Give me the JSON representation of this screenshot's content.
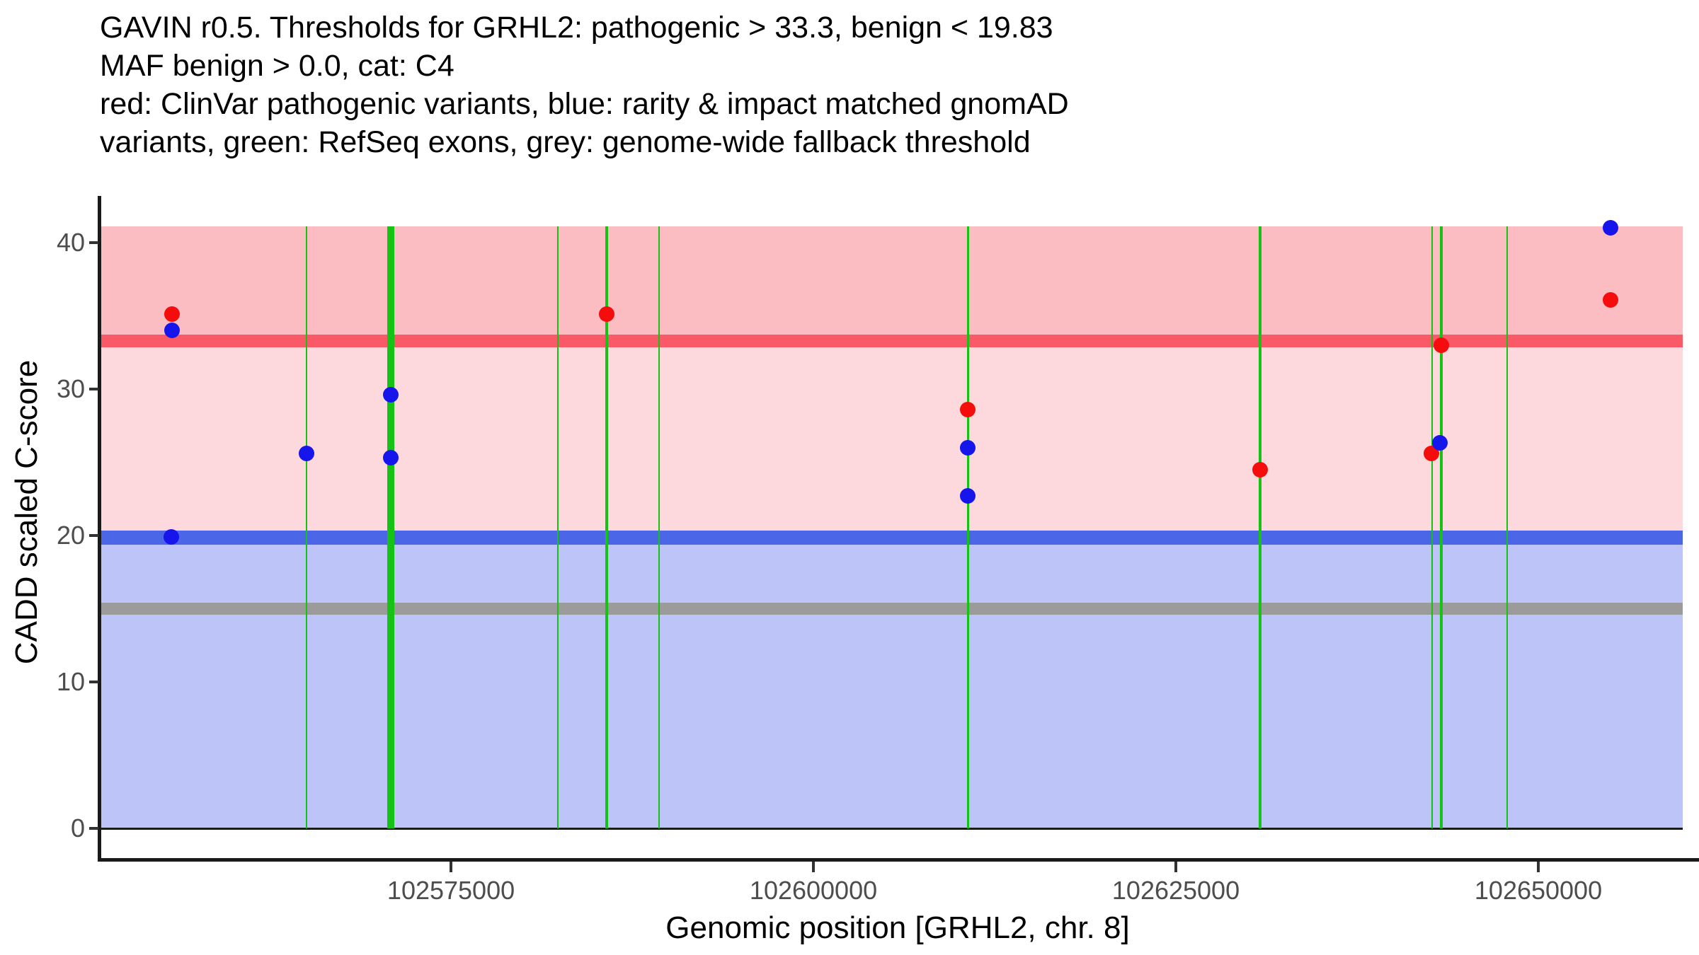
{
  "chart_data": {
    "type": "scatter",
    "title_lines": [
      "GAVIN r0.5. Thresholds for GRHL2: pathogenic > 33.3, benign < 19.83",
      "MAF benign > 0.0, cat: C4",
      "red: ClinVar pathogenic variants, blue: rarity & impact matched gnomAD",
      "variants, green: RefSeq exons, grey: genome-wide fallback threshold"
    ],
    "xlabel": "Genomic position [GRHL2, chr. 8]",
    "ylabel": "CADD scaled C-score",
    "gene": "GRHL2",
    "chromosome": "8",
    "x_ticks": [
      {
        "value": 102575000,
        "label": "102575000"
      },
      {
        "value": 102600000,
        "label": "102600000"
      },
      {
        "value": 102625000,
        "label": "102625000"
      },
      {
        "value": 102650000,
        "label": "102650000"
      }
    ],
    "y_ticks": [
      {
        "value": 0,
        "label": "0"
      },
      {
        "value": 10,
        "label": "10"
      },
      {
        "value": 20,
        "label": "20"
      },
      {
        "value": 30,
        "label": "30"
      },
      {
        "value": 40,
        "label": "40"
      }
    ],
    "xlim": [
      102550730,
      102659960
    ],
    "ylim": [
      0,
      41.1
    ],
    "grid": false,
    "legend_position": "none (legend described in title text)",
    "thresholds": {
      "pathogenic_cadd": 33.3,
      "benign_cadd": 19.83,
      "genome_wide_fallback_cadd": 15.0,
      "maf_benign": 0.0,
      "category": "C4"
    },
    "bands": [
      {
        "name": "pathogenic-zone",
        "from": 33.3,
        "to": 41.1,
        "color": "#fbbcc2"
      },
      {
        "name": "vus-zone",
        "from": 19.83,
        "to": 33.3,
        "color": "#fdd8dc"
      },
      {
        "name": "benign-zone",
        "from": 0,
        "to": 19.83,
        "color": "#bdc4f7"
      }
    ],
    "threshold_lines": [
      {
        "name": "pathogenic-threshold-line",
        "value": 33.3,
        "color": "#fa5a68",
        "thickness": 18
      },
      {
        "name": "benign-threshold-line",
        "value": 19.83,
        "color": "#4c66e8",
        "thickness": 20
      },
      {
        "name": "fallback-threshold-line",
        "value": 15.0,
        "color": "#9b9b9b",
        "thickness": 17
      }
    ],
    "zero_line": {
      "value": 0,
      "color": "#1a1a1a",
      "thickness": 3
    },
    "exon_color": "#14c314",
    "exons": [
      {
        "pos": 102565040,
        "width_bp": 100
      },
      {
        "pos": 102570850,
        "width_bp": 480
      },
      {
        "pos": 102582370,
        "width_bp": 100
      },
      {
        "pos": 102585740,
        "width_bp": 170
      },
      {
        "pos": 102589360,
        "width_bp": 120
      },
      {
        "pos": 102610650,
        "width_bp": 150
      },
      {
        "pos": 102630810,
        "width_bp": 170
      },
      {
        "pos": 102642660,
        "width_bp": 100
      },
      {
        "pos": 102643300,
        "width_bp": 220
      },
      {
        "pos": 102647850,
        "width_bp": 100
      }
    ],
    "series": [
      {
        "name": "ClinVar pathogenic variants",
        "color": "#f50c0c",
        "points": [
          {
            "pos": 102555760,
            "score": 35.1
          },
          {
            "pos": 102585740,
            "score": 35.1
          },
          {
            "pos": 102610650,
            "score": 28.6
          },
          {
            "pos": 102630810,
            "score": 24.5
          },
          {
            "pos": 102642610,
            "score": 25.6
          },
          {
            "pos": 102643290,
            "score": 33.0
          },
          {
            "pos": 102654980,
            "score": 36.1
          }
        ]
      },
      {
        "name": "rarity & impact matched gnomAD variants",
        "color": "#1515ec",
        "points": [
          {
            "pos": 102555760,
            "score": 34.0
          },
          {
            "pos": 102555710,
            "score": 19.9
          },
          {
            "pos": 102565040,
            "score": 25.6
          },
          {
            "pos": 102570850,
            "score": 29.6
          },
          {
            "pos": 102570850,
            "score": 25.3
          },
          {
            "pos": 102610650,
            "score": 26.0
          },
          {
            "pos": 102610650,
            "score": 22.7
          },
          {
            "pos": 102643210,
            "score": 26.3
          },
          {
            "pos": 102654980,
            "score": 41.0
          }
        ]
      }
    ],
    "axis_colors": {
      "axis_line": "#1a1a1a",
      "tick_mark": "#333333",
      "tick_text": "#4d4d4d",
      "title_text": "#000000"
    }
  }
}
